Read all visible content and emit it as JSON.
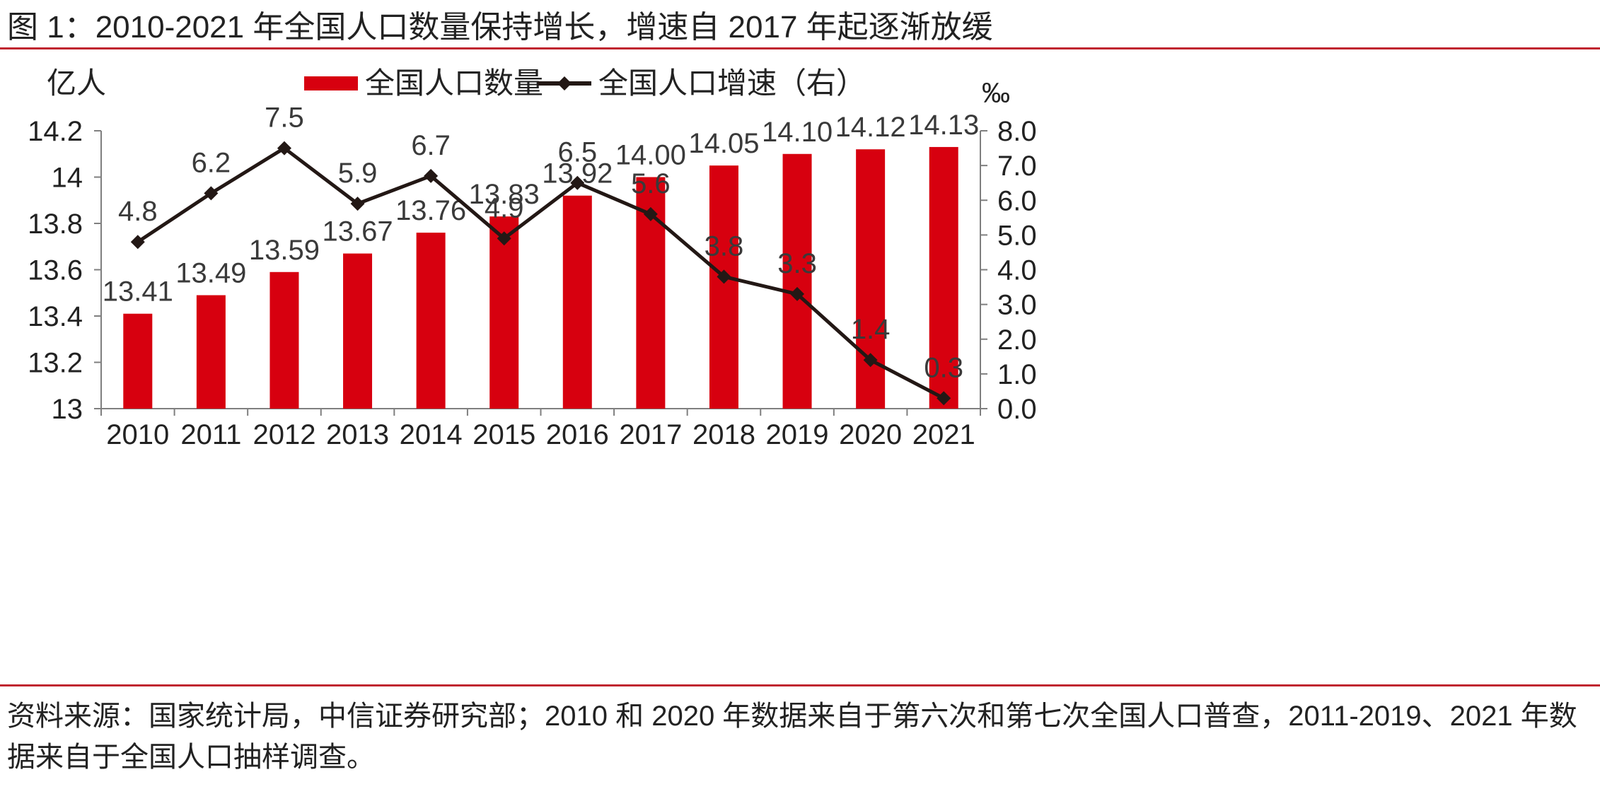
{
  "title": "图 1：2010-2021 年全国人口数量保持增长，增速自 2017 年起逐渐放缓",
  "source": "资料来源：国家统计局，中信证券研究部；2010 和 2020 年数据来自于第六次和第七次全国人口普查，2011-2019、2021 年数据来自于全国人口抽样调查。",
  "colors": {
    "bar": "#d7000f",
    "line": "#231815",
    "rule": "#c0262f"
  },
  "chart_data": {
    "type": "bar+line",
    "categories": [
      "2010",
      "2011",
      "2012",
      "2013",
      "2014",
      "2015",
      "2016",
      "2017",
      "2018",
      "2019",
      "2020",
      "2021"
    ],
    "series": [
      {
        "name": "全国人口数量",
        "type": "bar",
        "axis": "left",
        "values": [
          13.41,
          13.49,
          13.59,
          13.67,
          13.76,
          13.83,
          13.92,
          14.0,
          14.05,
          14.1,
          14.12,
          14.13
        ],
        "labels": [
          "13.41",
          "13.49",
          "13.59",
          "13.67",
          "13.76",
          "13.83",
          "13.92",
          "14.00",
          "14.05",
          "14.10",
          "14.12",
          "14.13"
        ]
      },
      {
        "name": "全国人口增速（右）",
        "type": "line",
        "axis": "right",
        "values": [
          4.8,
          6.2,
          7.5,
          5.9,
          6.7,
          4.9,
          6.5,
          5.6,
          3.8,
          3.3,
          1.4,
          0.3
        ],
        "labels": [
          "4.8",
          "6.2",
          "7.5",
          "5.9",
          "6.7",
          "4.9",
          "6.5",
          "5.6",
          "3.8",
          "3.3",
          "1.4",
          "0.3"
        ]
      }
    ],
    "y_left": {
      "label": "亿人",
      "ylim": [
        13,
        14.2
      ],
      "ticks": [
        13,
        13.2,
        13.4,
        13.6,
        13.8,
        14,
        14.2
      ],
      "tick_labels": [
        "13",
        "13.2",
        "13.4",
        "13.6",
        "13.8",
        "14",
        "14.2"
      ]
    },
    "y_right": {
      "label": "‰",
      "ylim": [
        0,
        8
      ],
      "ticks": [
        0,
        1,
        2,
        3,
        4,
        5,
        6,
        7,
        8
      ],
      "tick_labels": [
        "0.0",
        "1.0",
        "2.0",
        "3.0",
        "4.0",
        "5.0",
        "6.0",
        "7.0",
        "8.0"
      ]
    },
    "legend_position": "top-center",
    "grid": false
  }
}
